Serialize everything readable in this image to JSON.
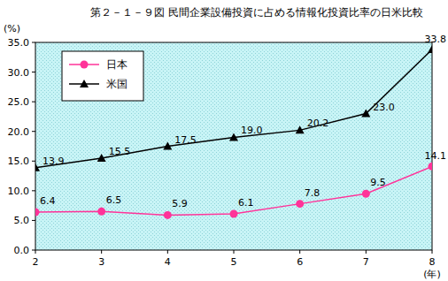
{
  "chart_data": {
    "type": "line",
    "title": "第２－１－９図 民間企業設備投資に占める情報化投資比率の日米比較",
    "y_label": "(%)",
    "x_label": "(年)",
    "categories": [
      "2",
      "3",
      "4",
      "5",
      "6",
      "7",
      "8"
    ],
    "series": [
      {
        "name": "日本",
        "color": "#ff3399",
        "marker": "circle",
        "line_style": "solid",
        "values": [
          6.4,
          6.5,
          5.9,
          6.1,
          7.8,
          9.5,
          14.1
        ]
      },
      {
        "name": "米国",
        "color": "#000000",
        "marker": "triangle",
        "line_style": "solid",
        "values": [
          13.9,
          15.5,
          17.5,
          19.0,
          20.2,
          23.0,
          33.8
        ],
        "value_labels": [
          "13.9",
          "15.5",
          "17.5",
          "19.0",
          "20.2",
          "23.0",
          "33.8"
        ]
      }
    ],
    "ylim": [
      0,
      35
    ],
    "yticks": [
      {
        "value": 0,
        "label": "0.0"
      },
      {
        "value": 5,
        "label": "5.0"
      },
      {
        "value": 10,
        "label": "10.0"
      },
      {
        "value": 15,
        "label": "15.0"
      },
      {
        "value": 20,
        "label": "20.0"
      },
      {
        "value": 25,
        "label": "25.0"
      },
      {
        "value": 30,
        "label": "30.0"
      },
      {
        "value": 35,
        "label": "35.0"
      }
    ],
    "grid": false,
    "legend": "top-left",
    "data_labels": true
  }
}
